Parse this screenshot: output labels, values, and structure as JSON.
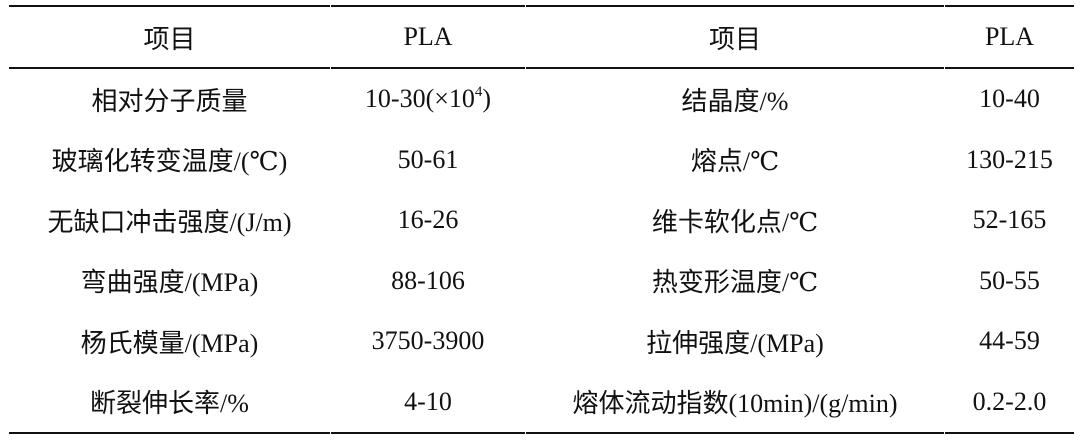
{
  "headers": [
    "项目",
    "PLA",
    "项目",
    "PLA"
  ],
  "rows": [
    {
      "item1": "相对分子质量",
      "val1_base": "10-30(×10",
      "val1_sup": "4",
      "val1_tail": ")",
      "item2": "结晶度/%",
      "val2": "10-40"
    },
    {
      "item1": "玻璃化转变温度/(℃)",
      "val1": "50-61",
      "item2": "熔点/℃",
      "val2": "130-215"
    },
    {
      "item1": "无缺口冲击强度/(J/m)",
      "val1": "16-26",
      "item2": "维卡软化点/℃",
      "val2": "52-165"
    },
    {
      "item1": "弯曲强度/(MPa)",
      "val1": "88-106",
      "item2": "热变形温度/℃",
      "val2": "50-55"
    },
    {
      "item1": "杨氏模量/(MPa)",
      "val1": "3750-3900",
      "item2": "拉伸强度/(MPa)",
      "val2": "44-59"
    },
    {
      "item1": "断裂伸长率/%",
      "val1": "4-10",
      "item2": "熔体流动指数(10min)/(g/min)",
      "val2": "0.2-2.0"
    }
  ]
}
